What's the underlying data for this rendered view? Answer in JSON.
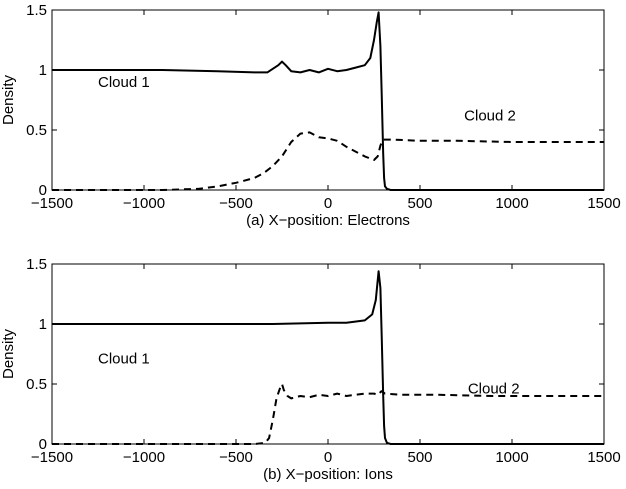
{
  "chart_data": [
    {
      "type": "line",
      "title": "",
      "xlabel": "(a) X−position: Electrons",
      "ylabel": "Density",
      "xlim": [
        -1500,
        1500
      ],
      "ylim": [
        0,
        1.5
      ],
      "x_ticks": [
        -1500,
        -1000,
        -500,
        0,
        500,
        1000,
        1500
      ],
      "x_tick_labels": [
        "−1500",
        "−1000",
        "−500",
        "0",
        "500",
        "1000",
        "1500"
      ],
      "y_ticks": [
        0,
        0.5,
        1,
        1.5
      ],
      "y_tick_labels": [
        "0",
        "0.5",
        "1",
        "1.5"
      ],
      "grid": false,
      "annotations": [
        {
          "text": "Cloud 1",
          "x": -1250,
          "y": 0.86
        },
        {
          "text": "Cloud 2",
          "x": 740,
          "y": 0.58
        }
      ],
      "series": [
        {
          "style": "solid",
          "x": [
            -1500,
            -1200,
            -900,
            -600,
            -400,
            -330,
            -300,
            -270,
            -250,
            -230,
            -200,
            -150,
            -100,
            -50,
            0,
            50,
            100,
            150,
            200,
            230,
            250,
            265,
            275,
            285,
            292,
            300,
            305,
            310,
            320,
            340,
            400,
            600,
            900,
            1200,
            1500
          ],
          "y": [
            1.0,
            1.0,
            1.0,
            0.99,
            0.98,
            0.98,
            1.01,
            1.04,
            1.07,
            1.04,
            0.99,
            0.98,
            1.0,
            0.98,
            1.01,
            0.99,
            1.0,
            1.02,
            1.04,
            1.1,
            1.25,
            1.4,
            1.48,
            1.2,
            0.8,
            0.3,
            0.1,
            0.03,
            0.01,
            0.0,
            0.0,
            0.0,
            0.0,
            0.0,
            0.0
          ]
        },
        {
          "style": "dashed",
          "x": [
            -1500,
            -1200,
            -900,
            -700,
            -600,
            -500,
            -400,
            -350,
            -300,
            -250,
            -200,
            -150,
            -100,
            -50,
            0,
            50,
            100,
            150,
            200,
            250,
            270,
            285,
            300,
            350,
            500,
            700,
            1000,
            1200,
            1500
          ],
          "y": [
            0.0,
            0.0,
            0.0,
            0.01,
            0.03,
            0.06,
            0.1,
            0.14,
            0.2,
            0.28,
            0.4,
            0.47,
            0.48,
            0.44,
            0.43,
            0.41,
            0.36,
            0.32,
            0.28,
            0.25,
            0.28,
            0.37,
            0.42,
            0.42,
            0.41,
            0.41,
            0.4,
            0.4,
            0.4
          ]
        }
      ]
    },
    {
      "type": "line",
      "title": "",
      "xlabel": "(b) X−position: Ions",
      "ylabel": "Density",
      "xlim": [
        -1500,
        1500
      ],
      "ylim": [
        0,
        1.5
      ],
      "x_ticks": [
        -1500,
        -1000,
        -500,
        0,
        500,
        1000,
        1500
      ],
      "x_tick_labels": [
        "−1500",
        "−1000",
        "−500",
        "0",
        "500",
        "1000",
        "1500"
      ],
      "y_ticks": [
        0,
        0.5,
        1,
        1.5
      ],
      "y_tick_labels": [
        "0",
        "0.5",
        "1",
        "1.5"
      ],
      "grid": false,
      "annotations": [
        {
          "text": "Cloud 1",
          "x": -1250,
          "y": 0.67
        },
        {
          "text": "Cloud 2",
          "x": 760,
          "y": 0.42
        }
      ],
      "series": [
        {
          "style": "solid",
          "x": [
            -1500,
            -1200,
            -900,
            -600,
            -300,
            0,
            100,
            200,
            240,
            260,
            275,
            285,
            292,
            300,
            305,
            310,
            320,
            340,
            400,
            700,
            1000,
            1500
          ],
          "y": [
            1.0,
            1.0,
            1.0,
            1.0,
            1.0,
            1.01,
            1.01,
            1.03,
            1.08,
            1.2,
            1.44,
            1.3,
            0.9,
            0.4,
            0.15,
            0.05,
            0.01,
            0.0,
            0.0,
            0.0,
            0.0,
            0.0
          ]
        },
        {
          "style": "dashed",
          "x": [
            -1500,
            -1000,
            -500,
            -400,
            -340,
            -320,
            -300,
            -280,
            -260,
            -250,
            -240,
            -220,
            -200,
            -150,
            -100,
            -50,
            0,
            50,
            100,
            150,
            200,
            250,
            270,
            290,
            310,
            400,
            600,
            900,
            1200,
            1500
          ],
          "y": [
            0.0,
            0.0,
            0.0,
            0.0,
            0.01,
            0.05,
            0.2,
            0.38,
            0.47,
            0.5,
            0.45,
            0.4,
            0.38,
            0.4,
            0.39,
            0.41,
            0.4,
            0.42,
            0.4,
            0.41,
            0.42,
            0.42,
            0.41,
            0.44,
            0.42,
            0.41,
            0.41,
            0.4,
            0.4,
            0.4
          ]
        }
      ]
    }
  ]
}
